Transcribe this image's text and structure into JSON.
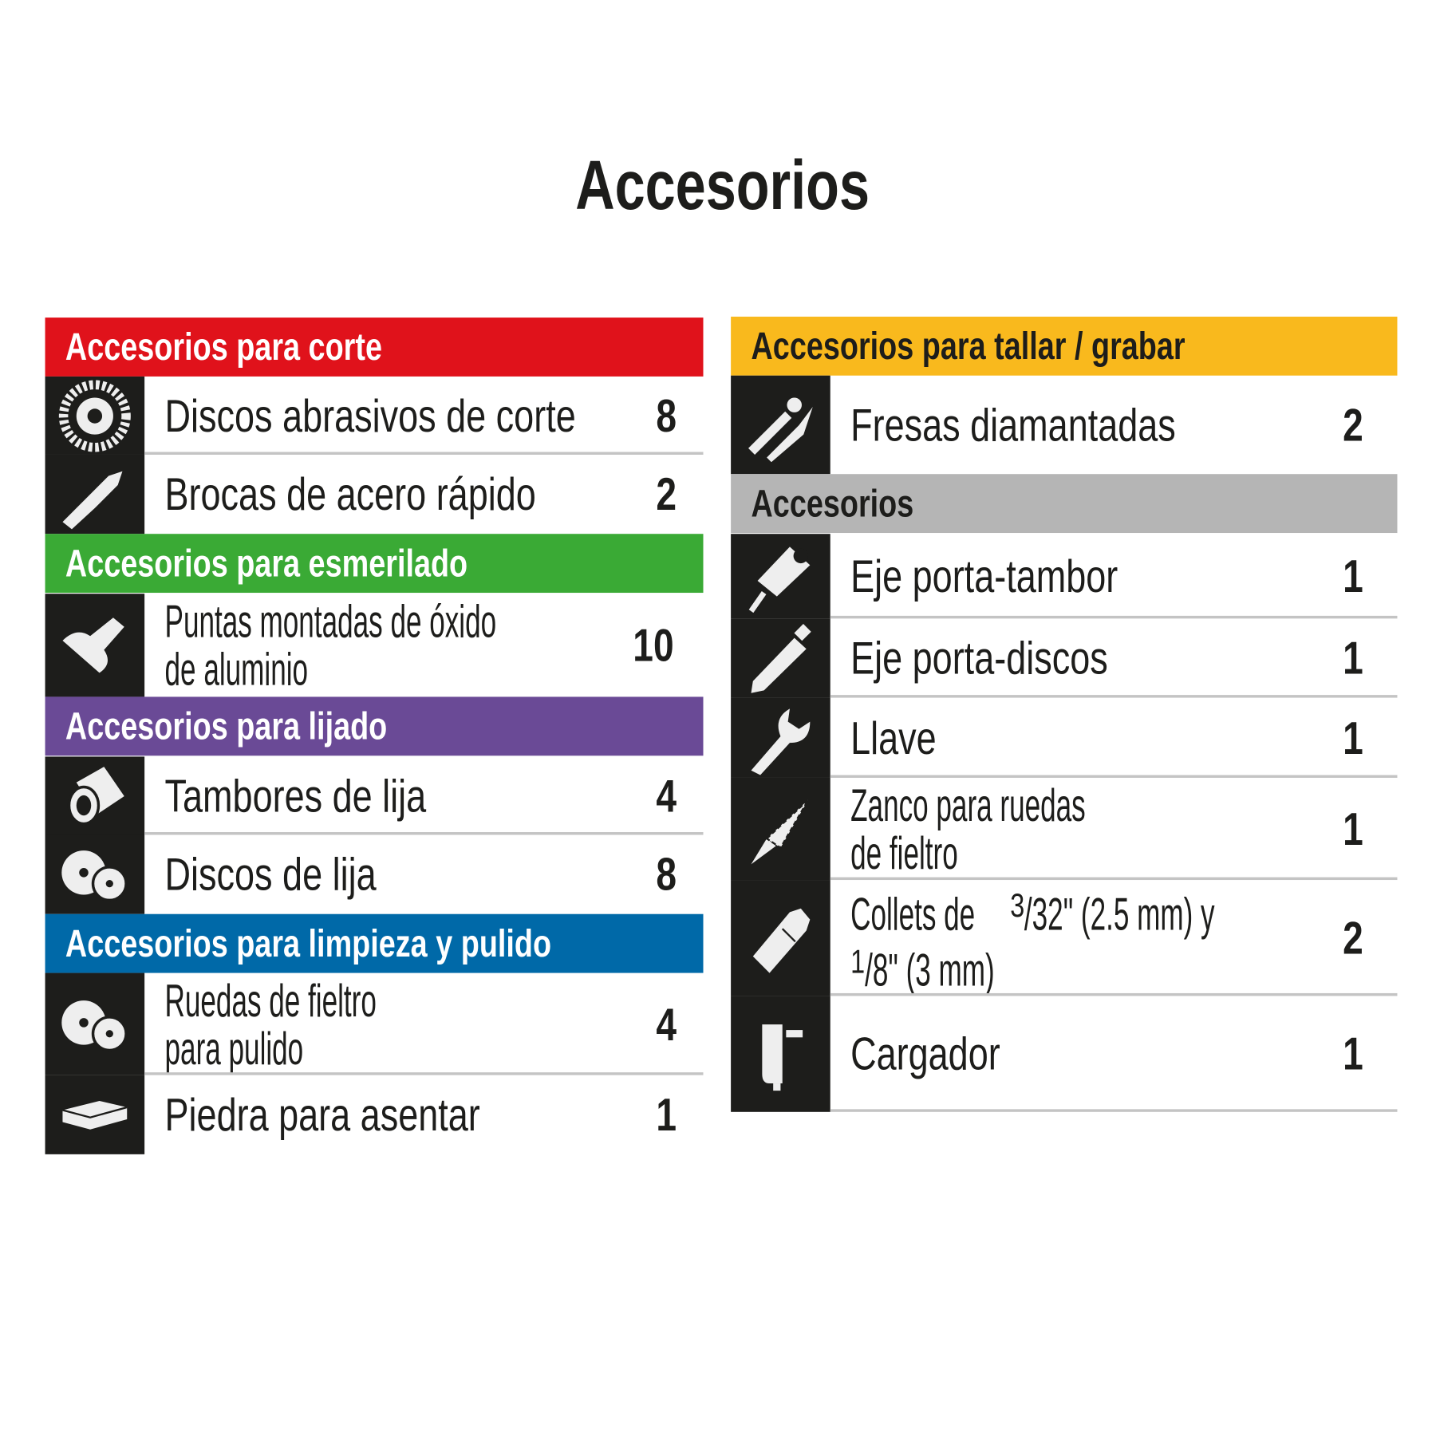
{
  "title": "Accesorios",
  "colors": {
    "corte": "#e0121b",
    "esmerilado": "#3aaa35",
    "lijado": "#6a4a96",
    "limpieza": "#0069a8",
    "tallar": "#f9b91d",
    "accesorios": "#b5b5b5",
    "icon_bg": "#1d1d1b"
  },
  "left": {
    "corte": {
      "header": "Accesorios para corte",
      "items": [
        {
          "label": "Discos abrasivos de corte",
          "qty": "8",
          "icon": "cutting-disc-icon"
        },
        {
          "label": "Brocas de acero rápido",
          "qty": "2",
          "icon": "drill-bit-icon"
        }
      ]
    },
    "esmerilado": {
      "header": "Accesorios para esmerilado",
      "items": [
        {
          "label1": "Puntas montadas de óxido",
          "label2": "de aluminio",
          "qty": "10",
          "icon": "mounted-point-icon"
        }
      ]
    },
    "lijado": {
      "header": "Accesorios para lijado",
      "items": [
        {
          "label": "Tambores de lija",
          "qty": "4",
          "icon": "sanding-drum-icon"
        },
        {
          "label": "Discos de lija",
          "qty": "8",
          "icon": "sanding-disc-icon"
        }
      ]
    },
    "limpieza": {
      "header": "Accesorios para limpieza y pulido",
      "items": [
        {
          "label1": "Ruedas de fieltro",
          "label2": "para pulido",
          "qty": "4",
          "icon": "felt-wheel-icon"
        },
        {
          "label": "Piedra para asentar",
          "qty": "1",
          "icon": "sharpening-stone-icon"
        }
      ]
    }
  },
  "right": {
    "tallar": {
      "header": "Accesorios para tallar / grabar",
      "items": [
        {
          "label": "Fresas diamantadas",
          "qty": "2",
          "icon": "diamond-bit-icon"
        }
      ]
    },
    "accesorios": {
      "header": "Accesorios",
      "items": [
        {
          "label": "Eje porta-tambor",
          "qty": "1",
          "icon": "drum-mandrel-icon"
        },
        {
          "label": "Eje porta-discos",
          "qty": "1",
          "icon": "disc-mandrel-icon"
        },
        {
          "label": "Llave",
          "qty": "1",
          "icon": "wrench-icon"
        },
        {
          "label1": "Zanco para ruedas",
          "label2": "de fieltro",
          "qty": "1",
          "icon": "felt-shank-icon"
        },
        {
          "collets_a": "Collets de ",
          "collets_b": "3",
          "collets_c": "/32\" (2.5 mm) y",
          "collets_d": "1",
          "collets_e": "/8\" (3 mm)",
          "qty": "2",
          "icon": "collet-icon"
        },
        {
          "label": "Cargador",
          "qty": "1",
          "icon": "charger-icon"
        }
      ]
    }
  }
}
